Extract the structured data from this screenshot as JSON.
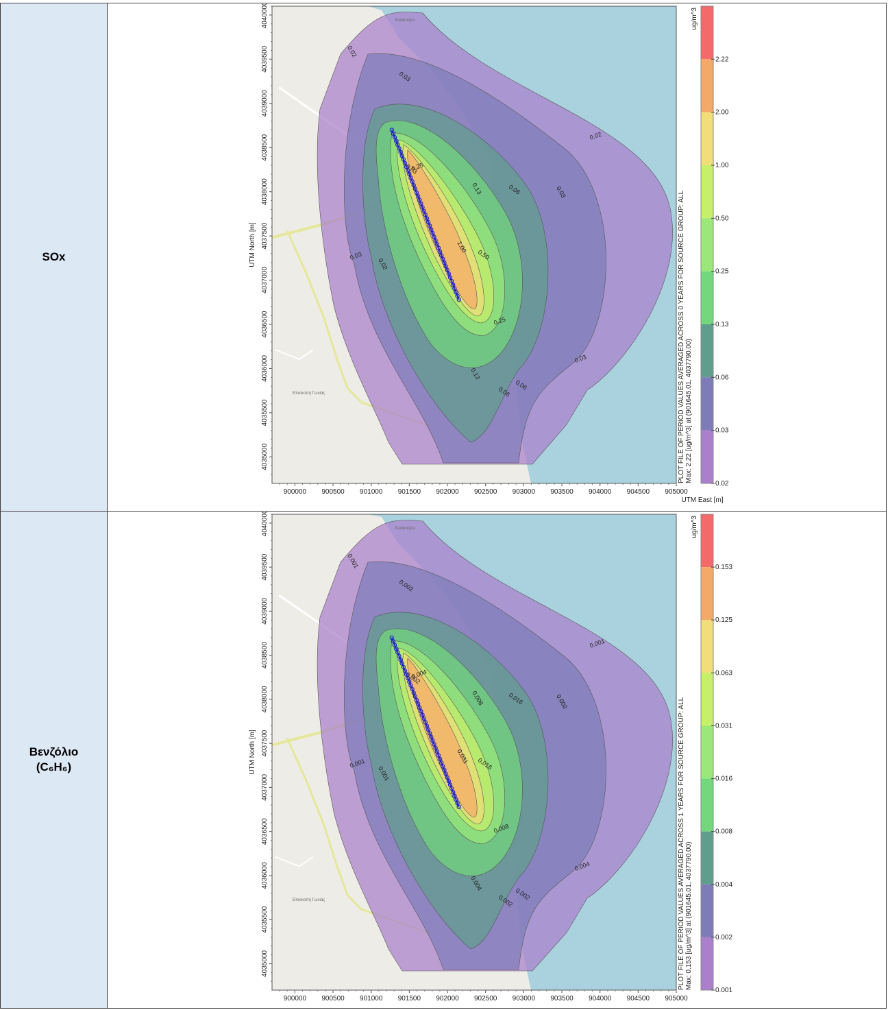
{
  "rows": [
    {
      "pollutant": "SOx",
      "pollutant_sub": "",
      "map": {
        "y_axis_title": "UTM North [m]",
        "x_axis_title": "UTM East [m]",
        "y_ticks": [
          "4040000",
          "4039500",
          "4039000",
          "4038500",
          "4038000",
          "4037500",
          "4037000",
          "4036500",
          "4036000",
          "4035500",
          "4035000"
        ],
        "x_ticks": [
          "900000",
          "900500",
          "901000",
          "901500",
          "902000",
          "902500",
          "903000",
          "903500",
          "904000",
          "904500",
          "905000"
        ],
        "place_labels": [
          "Κλεϊσούρα",
          "Επισκοπή Γωνιάς"
        ],
        "legend_unit": "ug/m^3",
        "legend_levels": [
          "2.22",
          "2.00",
          "1.00",
          "0.50",
          "0.25",
          "0.13",
          "0.06",
          "0.03",
          "0.02"
        ],
        "legend_colors": [
          "#f46a6a",
          "#f5a968",
          "#f1dd79",
          "#c6ef6a",
          "#9be87a",
          "#73d77c",
          "#5f9e8c",
          "#7d7cb8",
          "#ab7fcc"
        ],
        "side_caption_1": "PLOT FILE OF PERIOD VALUES AVERAGED ACROSS 0 YEARS FOR SOURCE GROUP: ALL",
        "side_caption_2": "Max:  2.22  [ug/m^3]  at  (901645.01, 4037790.00)",
        "contour_labels": [
          "0.02",
          "0.03",
          "0.02",
          "0.03",
          "0.06",
          "0.25",
          "0.13",
          "0.06",
          "0.03",
          "1.00",
          "0.50",
          "0.25",
          "0.13",
          "0.06",
          "0.03",
          "0.02",
          "0.03"
        ]
      },
      "chart_data": {
        "type": "heatmap",
        "title": "PLOT FILE OF PERIOD VALUES AVERAGED ACROSS 0 YEARS FOR SOURCE GROUP: ALL",
        "xlabel": "UTM East [m]",
        "ylabel": "UTM North [m]",
        "xlim": [
          899700,
          905000
        ],
        "ylim": [
          4034700,
          4040100
        ],
        "levels": [
          0.02,
          0.03,
          0.06,
          0.13,
          0.25,
          0.5,
          1.0,
          2.0,
          2.22
        ],
        "unit": "ug/m^3",
        "max_value": 2.22,
        "max_location": [
          901645.01,
          4037790.0
        ],
        "source_line": {
          "start": [
            901270,
            4038700
          ],
          "end": [
            902150,
            4036780
          ]
        }
      }
    },
    {
      "pollutant": "Βενζόλιο",
      "pollutant_sub": "(C₆H₆)",
      "map": {
        "y_axis_title": "UTM North [m]",
        "x_axis_title": "",
        "y_ticks": [
          "4040000",
          "4039500",
          "4039000",
          "4038500",
          "4038000",
          "4037500",
          "4037000",
          "4036500",
          "4036000",
          "4035500",
          "4035000"
        ],
        "x_ticks": [
          "900000",
          "900500",
          "901000",
          "901500",
          "902000",
          "902500",
          "903000",
          "903500",
          "904000",
          "904500",
          "905000"
        ],
        "place_labels": [
          "Κλεϊσούρα",
          "Επισκοπή Γωνιάς"
        ],
        "legend_unit": "ug/m^3",
        "legend_levels": [
          "0.153",
          "0.125",
          "0.063",
          "0.031",
          "0.016",
          "0.008",
          "0.004",
          "0.002",
          "0.001"
        ],
        "legend_colors": [
          "#f46a6a",
          "#f5a968",
          "#f1dd79",
          "#c6ef6a",
          "#9be87a",
          "#73d77c",
          "#5f9e8c",
          "#7d7cb8",
          "#ab7fcc"
        ],
        "side_caption_1": "PLOT FILE OF PERIOD VALUES AVERAGED ACROSS 1 YEARS FOR SOURCE GROUP: ALL",
        "side_caption_2": "Max:  0.153  [ug/m^3]  at  (901645.01, 4037790.00)",
        "contour_labels": [
          "0.001",
          "0.002",
          "0.001",
          "0.002",
          "0.016",
          "0.004",
          "0.008",
          "0.002",
          "0.004",
          "0.031",
          "0.016",
          "0.008",
          "0.004",
          "0.002",
          "0.001",
          "0.001",
          "0.002"
        ]
      },
      "chart_data": {
        "type": "heatmap",
        "title": "PLOT FILE OF PERIOD VALUES AVERAGED ACROSS 1 YEARS FOR SOURCE GROUP: ALL",
        "xlabel": "",
        "ylabel": "UTM North [m]",
        "xlim": [
          899700,
          905000
        ],
        "ylim": [
          4034700,
          4040100
        ],
        "levels": [
          0.001,
          0.002,
          0.004,
          0.008,
          0.016,
          0.031,
          0.063,
          0.125,
          0.153
        ],
        "unit": "ug/m^3",
        "max_value": 0.153,
        "max_location": [
          901645.01,
          4037790.0
        ],
        "source_line": {
          "start": [
            901270,
            4038700
          ],
          "end": [
            902150,
            4036780
          ]
        }
      }
    }
  ]
}
